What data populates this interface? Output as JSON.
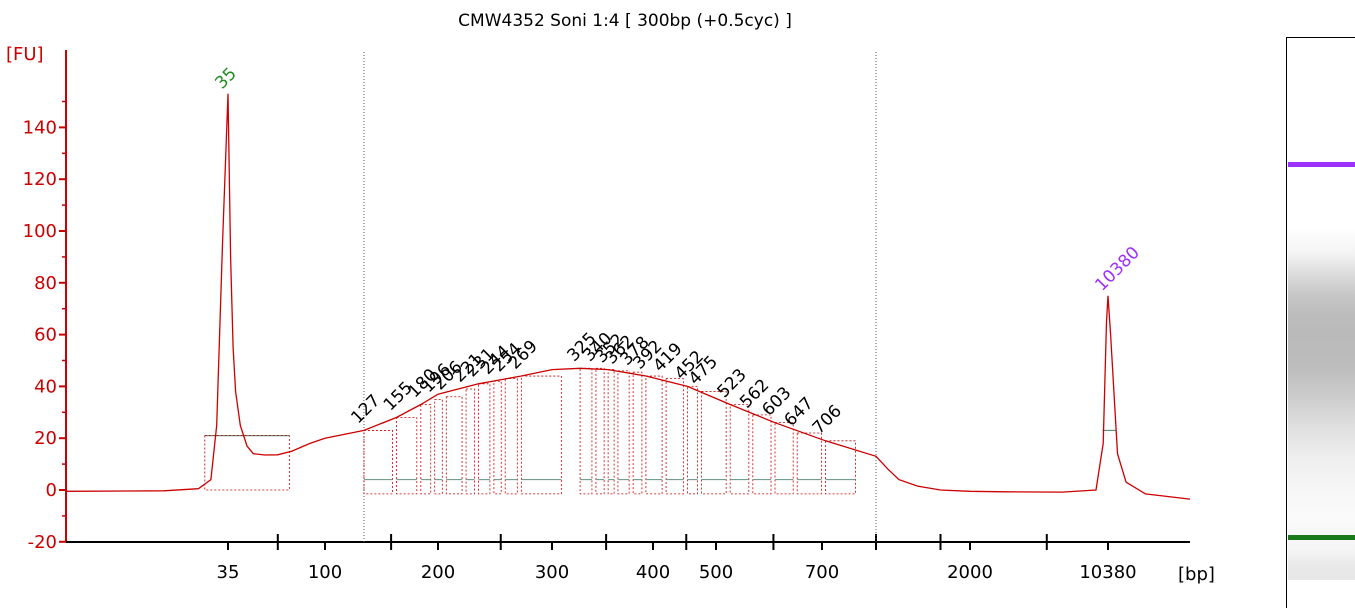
{
  "chart_data": {
    "type": "line",
    "title": "CMW4352 Soni 1:4  [ 300bp (+0.5cyc) ]",
    "ylabel": "[FU]",
    "xlabel": "[bp]",
    "ylim": [
      -20,
      160
    ],
    "yticks": [
      -20,
      0,
      20,
      40,
      60,
      80,
      100,
      120,
      140
    ],
    "xtick_labels": [
      "35",
      "100",
      "200",
      "300",
      "400",
      "500",
      "700",
      "2000",
      "10380"
    ],
    "x_scale": "log-like (bp)",
    "grid": false,
    "colors": {
      "trace": "#cc0000",
      "axis": "#cc0000",
      "lower_marker": "#228b22",
      "upper_marker": "#9b30ff",
      "baseline": "#5f8f7f",
      "fragment_labels": "#000000"
    },
    "series": [
      {
        "name": "",
        "points": [
          [
            15,
            -0.5
          ],
          [
            25,
            -0.3
          ],
          [
            30,
            0.5
          ],
          [
            32,
            4
          ],
          [
            33,
            25
          ],
          [
            34,
            95
          ],
          [
            35,
            153
          ],
          [
            36,
            90
          ],
          [
            37,
            55
          ],
          [
            38,
            38
          ],
          [
            40,
            25
          ],
          [
            43,
            17
          ],
          [
            46,
            14
          ],
          [
            52,
            13.5
          ],
          [
            60,
            13.6
          ],
          [
            70,
            15
          ],
          [
            85,
            18
          ],
          [
            100,
            20
          ],
          [
            127,
            23
          ],
          [
            155,
            28
          ],
          [
            180,
            33
          ],
          [
            200,
            37
          ],
          [
            231,
            41
          ],
          [
            269,
            44
          ],
          [
            300,
            46.5
          ],
          [
            325,
            47
          ],
          [
            352,
            46.5
          ],
          [
            392,
            44
          ],
          [
            452,
            40
          ],
          [
            523,
            33
          ],
          [
            603,
            26
          ],
          [
            706,
            19
          ],
          [
            800,
            13
          ],
          [
            900,
            8
          ],
          [
            1000,
            4
          ],
          [
            1200,
            1.5
          ],
          [
            1500,
            0
          ],
          [
            2000,
            -0.5
          ],
          [
            3000,
            -0.7
          ],
          [
            6000,
            -0.8
          ],
          [
            9000,
            0
          ],
          [
            9800,
            18
          ],
          [
            10200,
            65
          ],
          [
            10380,
            75
          ],
          [
            10600,
            60
          ],
          [
            11200,
            14
          ],
          [
            12000,
            3
          ],
          [
            14000,
            -1.5
          ],
          [
            20000,
            -3.5
          ]
        ]
      }
    ],
    "peaks": [
      {
        "label": "35",
        "x": 35,
        "y": 153,
        "type": "lower_marker"
      },
      {
        "label": "10380",
        "x": 10380,
        "y": 75,
        "type": "upper_marker"
      }
    ],
    "fragments": [
      {
        "label": "127",
        "x": 127,
        "y": 23
      },
      {
        "label": "155",
        "x": 155,
        "y": 28
      },
      {
        "label": "180",
        "x": 180,
        "y": 33
      },
      {
        "label": "196",
        "x": 196,
        "y": 35
      },
      {
        "label": "206",
        "x": 206,
        "y": 36
      },
      {
        "label": "221",
        "x": 221,
        "y": 39
      },
      {
        "label": "231",
        "x": 231,
        "y": 41
      },
      {
        "label": "244",
        "x": 244,
        "y": 42
      },
      {
        "label": "254",
        "x": 254,
        "y": 43
      },
      {
        "label": "269",
        "x": 269,
        "y": 44
      },
      {
        "label": "325",
        "x": 325,
        "y": 47
      },
      {
        "label": "340",
        "x": 340,
        "y": 47
      },
      {
        "label": "352",
        "x": 352,
        "y": 46.5
      },
      {
        "label": "362",
        "x": 362,
        "y": 46
      },
      {
        "label": "378",
        "x": 378,
        "y": 45.5
      },
      {
        "label": "392",
        "x": 392,
        "y": 44
      },
      {
        "label": "419",
        "x": 419,
        "y": 43
      },
      {
        "label": "452",
        "x": 452,
        "y": 40
      },
      {
        "label": "475",
        "x": 475,
        "y": 38
      },
      {
        "label": "523",
        "x": 523,
        "y": 33
      },
      {
        "label": "562",
        "x": 562,
        "y": 29
      },
      {
        "label": "603",
        "x": 603,
        "y": 26
      },
      {
        "label": "647",
        "x": 647,
        "y": 22
      },
      {
        "label": "706",
        "x": 706,
        "y": 19
      }
    ],
    "region_boundaries_bp": [
      127,
      800
    ]
  }
}
